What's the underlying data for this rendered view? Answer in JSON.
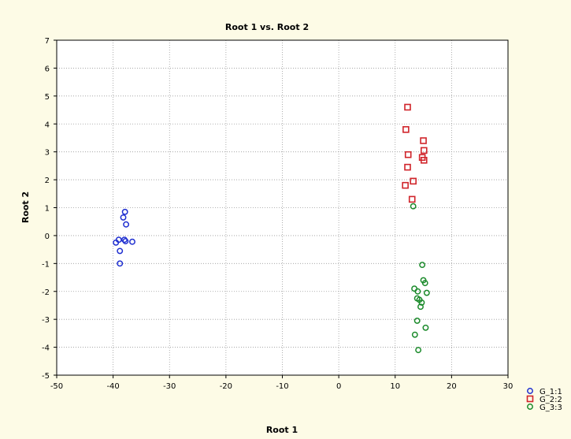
{
  "chart_data": {
    "type": "scatter",
    "title": "Root 1 vs. Root 2",
    "xlabel": "Root 1",
    "ylabel": "Root 2",
    "xlim": [
      -50,
      30
    ],
    "ylim": [
      -5,
      7
    ],
    "x_ticks": [
      -50,
      -40,
      -30,
      -20,
      -10,
      0,
      10,
      20,
      30
    ],
    "y_ticks": [
      -5,
      -4,
      -3,
      -2,
      -1,
      0,
      1,
      2,
      3,
      4,
      5,
      6,
      7
    ],
    "grid": true,
    "legend_position": "bottom-right",
    "series": [
      {
        "name": "G_1:1",
        "marker": "circle",
        "color": "#1f2fd0",
        "points": [
          [
            -37.9,
            0.85
          ],
          [
            -38.2,
            0.65
          ],
          [
            -37.7,
            0.4
          ],
          [
            -39.5,
            -0.25
          ],
          [
            -39.0,
            -0.15
          ],
          [
            -38.0,
            -0.15
          ],
          [
            -37.8,
            -0.2
          ],
          [
            -36.6,
            -0.22
          ],
          [
            -38.8,
            -0.55
          ],
          [
            -38.8,
            -1.0
          ]
        ]
      },
      {
        "name": "G_2:2",
        "marker": "square",
        "color": "#d0242a",
        "points": [
          [
            12.2,
            4.6
          ],
          [
            11.9,
            3.8
          ],
          [
            15.0,
            3.4
          ],
          [
            15.1,
            3.05
          ],
          [
            12.3,
            2.9
          ],
          [
            14.8,
            2.8
          ],
          [
            15.1,
            2.7
          ],
          [
            12.2,
            2.45
          ],
          [
            13.2,
            1.95
          ],
          [
            11.8,
            1.8
          ],
          [
            13.0,
            1.3
          ]
        ]
      },
      {
        "name": "G_3:3",
        "marker": "circle",
        "color": "#1a8a2a",
        "points": [
          [
            13.2,
            1.05
          ],
          [
            14.8,
            -1.05
          ],
          [
            15.0,
            -1.6
          ],
          [
            15.3,
            -1.7
          ],
          [
            13.4,
            -1.9
          ],
          [
            14.0,
            -2.0
          ],
          [
            15.6,
            -2.05
          ],
          [
            13.9,
            -2.25
          ],
          [
            14.3,
            -2.3
          ],
          [
            14.7,
            -2.4
          ],
          [
            14.5,
            -2.55
          ],
          [
            13.9,
            -3.05
          ],
          [
            15.4,
            -3.3
          ],
          [
            13.5,
            -3.55
          ],
          [
            14.1,
            -4.1
          ]
        ]
      }
    ]
  }
}
